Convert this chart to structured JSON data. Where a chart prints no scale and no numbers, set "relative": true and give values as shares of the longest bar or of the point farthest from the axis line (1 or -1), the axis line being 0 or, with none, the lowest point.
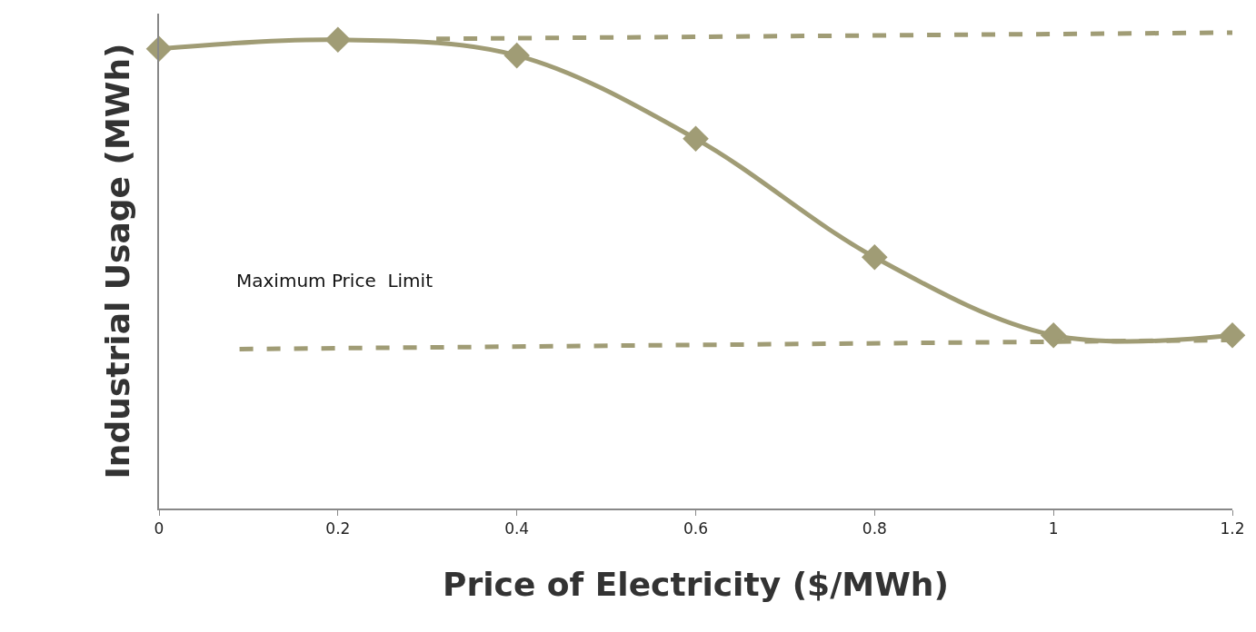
{
  "chart_data": {
    "type": "line",
    "relative": true,
    "xlabel": "Price of Electricity ($/MWh)",
    "ylabel": "Industrial Usage (MWh)",
    "x": [
      0,
      0.2,
      0.4,
      0.6,
      0.8,
      1,
      1.2
    ],
    "xlim": [
      0,
      1.2
    ],
    "xticks": [
      0,
      0.2,
      0.4,
      0.6,
      0.8,
      1,
      1.2
    ],
    "series": [
      {
        "color": "#a09c75",
        "values": [
          0.966,
          0.985,
          0.952,
          0.777,
          0.528,
          0.364,
          0.364
        ],
        "marker": "diamond",
        "line_style": "solid"
      },
      {
        "type": "line",
        "color": "#a09c75",
        "x": [
          0.31,
          1.2
        ],
        "values": [
          0.987,
          1.0
        ],
        "marker": "none",
        "line_style": "dashed"
      },
      {
        "type": "line",
        "color": "#a09c75",
        "x": [
          0.09,
          1.2
        ],
        "values": [
          0.335,
          0.354
        ],
        "marker": "none",
        "line_style": "dashed"
      }
    ],
    "annotations": [
      "Maximum Price  Limit"
    ]
  }
}
